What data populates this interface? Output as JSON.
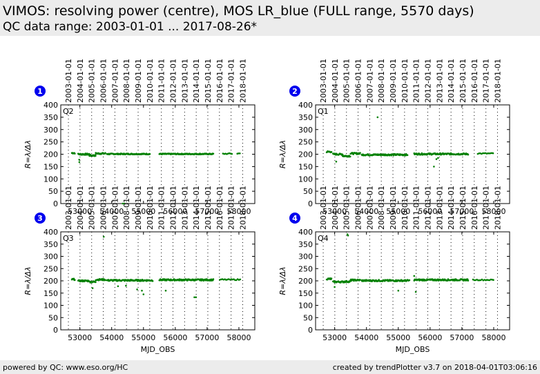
{
  "header": {
    "title": "VIMOS: resolving power (centre), MOS LR_blue (FULL range, 5570 days)",
    "subtitle": "QC data range: 2003-01-01 ... 2017-08-26*"
  },
  "footer": {
    "left": "powered by QC: www.eso.org/HC",
    "right": "created by trendPlotter v3.7 on 2018-04-01T03:06:16"
  },
  "colors": {
    "points": "#008000",
    "badge": "#0000ee",
    "header_bg": "#ececec"
  },
  "top_axis_dates": [
    "2003-01-01",
    "2004-01-01",
    "2005-01-01",
    "2006-01-01",
    "2007-01-01",
    "2008-01-01",
    "2009-01-01",
    "2010-01-01",
    "2011-01-01",
    "2012-01-01",
    "2013-01-01",
    "2014-01-01",
    "2015-01-01",
    "2016-01-01",
    "2017-01-01",
    "2018-01-01"
  ],
  "top_axis_mjd": [
    52640,
    53005,
    53371,
    53736,
    54101,
    54466,
    54832,
    55197,
    55562,
    55927,
    56293,
    56658,
    57023,
    57388,
    57754,
    58119
  ],
  "chart_data": [
    {
      "type": "scatter",
      "badge": "1",
      "label": "Q2",
      "xlabel": "",
      "ylabel": "R=λ/Δλ",
      "xlim": [
        52400,
        58500
      ],
      "ylim": [
        0,
        400
      ],
      "xticks": [
        53000,
        54000,
        55000,
        56000,
        57000,
        58000
      ],
      "yticks": [
        0,
        50,
        100,
        150,
        200,
        250,
        300,
        350,
        400
      ],
      "grid": "vertical dotted at year boundaries",
      "series": [
        {
          "segments": [
            {
              "x0": 52750,
              "x1": 52850,
              "y": 205,
              "step": 15,
              "jitter": 3
            },
            {
              "x0": 52950,
              "x1": 53300,
              "y": 200,
              "step": 15,
              "jitter": 3
            },
            {
              "x0": 53300,
              "x1": 53500,
              "y": 195,
              "step": 15,
              "jitter": 3
            },
            {
              "x0": 53500,
              "x1": 53800,
              "y": 203,
              "step": 15,
              "jitter": 3
            },
            {
              "x0": 53850,
              "x1": 55200,
              "y": 201,
              "step": 15,
              "jitter": 2
            },
            {
              "x0": 55500,
              "x1": 57200,
              "y": 201,
              "step": 15,
              "jitter": 2
            },
            {
              "x0": 57500,
              "x1": 57800,
              "y": 202,
              "step": 40,
              "jitter": 2
            },
            {
              "x0": 57950,
              "x1": 58050,
              "y": 203,
              "step": 40,
              "jitter": 2
            }
          ],
          "points": [
            [
              52980,
              178
            ],
            [
              52985,
              168
            ],
            [
              54350,
              0
            ],
            [
              54400,
              0
            ]
          ]
        }
      ]
    },
    {
      "type": "scatter",
      "badge": "2",
      "label": "Q1",
      "xlabel": "",
      "ylabel": "R=λ/Δλ",
      "xlim": [
        52400,
        58500
      ],
      "ylim": [
        0,
        400
      ],
      "xticks": [
        53000,
        54000,
        55000,
        56000,
        57000,
        58000
      ],
      "yticks": [
        0,
        50,
        100,
        150,
        200,
        250,
        300,
        350,
        400
      ],
      "grid": "vertical dotted at year boundaries",
      "series": [
        {
          "segments": [
            {
              "x0": 52750,
              "x1": 52900,
              "y": 210,
              "step": 15,
              "jitter": 3
            },
            {
              "x0": 52950,
              "x1": 53250,
              "y": 200,
              "step": 15,
              "jitter": 3
            },
            {
              "x0": 53250,
              "x1": 53500,
              "y": 193,
              "step": 15,
              "jitter": 3
            },
            {
              "x0": 53500,
              "x1": 53800,
              "y": 203,
              "step": 15,
              "jitter": 3
            },
            {
              "x0": 53850,
              "x1": 55300,
              "y": 198,
              "step": 15,
              "jitter": 3
            },
            {
              "x0": 55500,
              "x1": 57200,
              "y": 201,
              "step": 15,
              "jitter": 3
            },
            {
              "x0": 57500,
              "x1": 58000,
              "y": 203,
              "step": 40,
              "jitter": 2
            }
          ],
          "points": [
            [
              54350,
              350
            ],
            [
              56120,
              150
            ],
            [
              56200,
              180
            ],
            [
              56250,
              185
            ],
            [
              53050,
              170
            ]
          ]
        }
      ]
    },
    {
      "type": "scatter",
      "badge": "3",
      "label": "Q3",
      "xlabel": "MJD_OBS",
      "ylabel": "R=λ/Δλ",
      "xlim": [
        52400,
        58500
      ],
      "ylim": [
        0,
        400
      ],
      "xticks": [
        53000,
        54000,
        55000,
        56000,
        57000,
        58000
      ],
      "yticks": [
        0,
        50,
        100,
        150,
        200,
        250,
        300,
        350,
        400
      ],
      "grid": "vertical dotted at year boundaries",
      "series": [
        {
          "segments": [
            {
              "x0": 52750,
              "x1": 52850,
              "y": 206,
              "step": 15,
              "jitter": 3
            },
            {
              "x0": 52950,
              "x1": 53300,
              "y": 200,
              "step": 15,
              "jitter": 3
            },
            {
              "x0": 53300,
              "x1": 53500,
              "y": 196,
              "step": 15,
              "jitter": 3
            },
            {
              "x0": 53500,
              "x1": 53800,
              "y": 205,
              "step": 15,
              "jitter": 3
            },
            {
              "x0": 53850,
              "x1": 55300,
              "y": 202,
              "step": 15,
              "jitter": 3
            },
            {
              "x0": 55500,
              "x1": 57200,
              "y": 204,
              "step": 15,
              "jitter": 3
            },
            {
              "x0": 57400,
              "x1": 58050,
              "y": 205,
              "step": 40,
              "jitter": 2
            }
          ],
          "points": [
            [
              53750,
              380
            ],
            [
              53400,
              170
            ],
            [
              54200,
              178
            ],
            [
              54450,
              180
            ],
            [
              54800,
              165
            ],
            [
              54950,
              160
            ],
            [
              55000,
              145
            ],
            [
              55700,
              160
            ],
            [
              56600,
              133
            ],
            [
              56650,
              133
            ]
          ]
        }
      ]
    },
    {
      "type": "scatter",
      "badge": "4",
      "label": "Q4",
      "xlabel": "MJD_OBS",
      "ylabel": "R=λ/Δλ",
      "xlim": [
        52400,
        58500
      ],
      "ylim": [
        0,
        400
      ],
      "xticks": [
        53000,
        54000,
        55000,
        56000,
        57000,
        58000
      ],
      "yticks": [
        0,
        50,
        100,
        150,
        200,
        250,
        300,
        350,
        400
      ],
      "grid": "vertical dotted at year boundaries",
      "series": [
        {
          "segments": [
            {
              "x0": 52750,
              "x1": 52900,
              "y": 208,
              "step": 15,
              "jitter": 3
            },
            {
              "x0": 52950,
              "x1": 53300,
              "y": 196,
              "step": 15,
              "jitter": 3
            },
            {
              "x0": 53300,
              "x1": 53500,
              "y": 197,
              "step": 15,
              "jitter": 3
            },
            {
              "x0": 53500,
              "x1": 53800,
              "y": 203,
              "step": 15,
              "jitter": 3
            },
            {
              "x0": 53850,
              "x1": 55350,
              "y": 201,
              "step": 15,
              "jitter": 3
            },
            {
              "x0": 55500,
              "x1": 57200,
              "y": 204,
              "step": 15,
              "jitter": 3
            },
            {
              "x0": 57350,
              "x1": 58000,
              "y": 204,
              "step": 40,
              "jitter": 2
            }
          ],
          "points": [
            [
              53400,
              390
            ],
            [
              53420,
              385
            ],
            [
              53000,
              175
            ],
            [
              55000,
              160
            ],
            [
              55550,
              155
            ],
            [
              55500,
              220
            ]
          ]
        }
      ]
    }
  ]
}
